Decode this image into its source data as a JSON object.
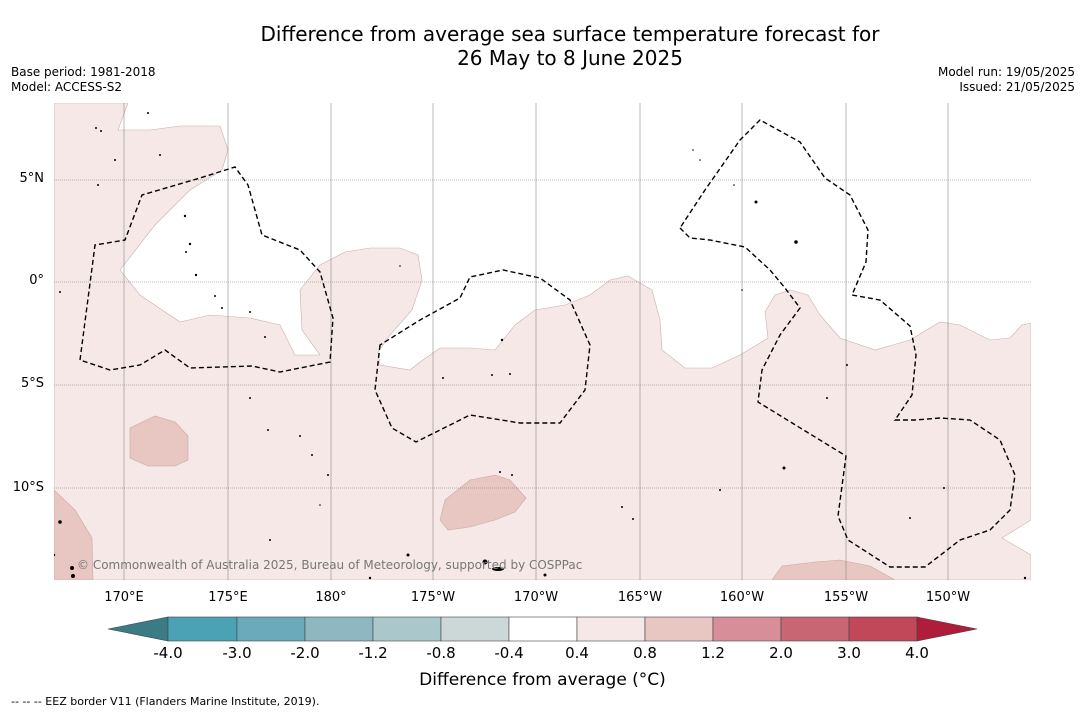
{
  "title_line1": "Difference from average sea surface temperature forecast for",
  "title_line2": "26 May to 8 June 2025",
  "base_period": "Base period: 1981-2018",
  "model": "Model: ACCESS-S2",
  "model_run": "Model run: 19/05/2025",
  "issued": "Issued: 21/05/2025",
  "lat_labels": [
    "5°N",
    "0°",
    "5°S",
    "10°S"
  ],
  "lon_labels": [
    "170°E",
    "175°E",
    "180°",
    "175°W",
    "170°W",
    "165°W",
    "160°W",
    "155°W",
    "150°W"
  ],
  "copyright": "© Commonwealth of Australia 2025, Bureau of Meteorology, supported by COSPPac",
  "colorbar": {
    "ticks": [
      "-4.0",
      "-3.0",
      "-2.0",
      "-1.2",
      "-0.8",
      "-0.4",
      "0.4",
      "0.8",
      "1.2",
      "2.0",
      "3.0",
      "4.0"
    ],
    "colors": [
      "#3a7b86",
      "#4aa2b4",
      "#6aaabb",
      "#8eb7c2",
      "#aac8cb",
      "#ccd7d8",
      "#ffffff",
      "#f5e8e6",
      "#e8c6c2",
      "#d88e98",
      "#c96673",
      "#c04858",
      "#b01d3a"
    ],
    "title": "Difference from average (°C)"
  },
  "footer": "--  --  -- EEZ border V11 (Flanders Marine Institute, 2019).",
  "fill_colors": {
    "light_pink": "#f5e8e6",
    "medium_pink": "#e8c6c2"
  }
}
